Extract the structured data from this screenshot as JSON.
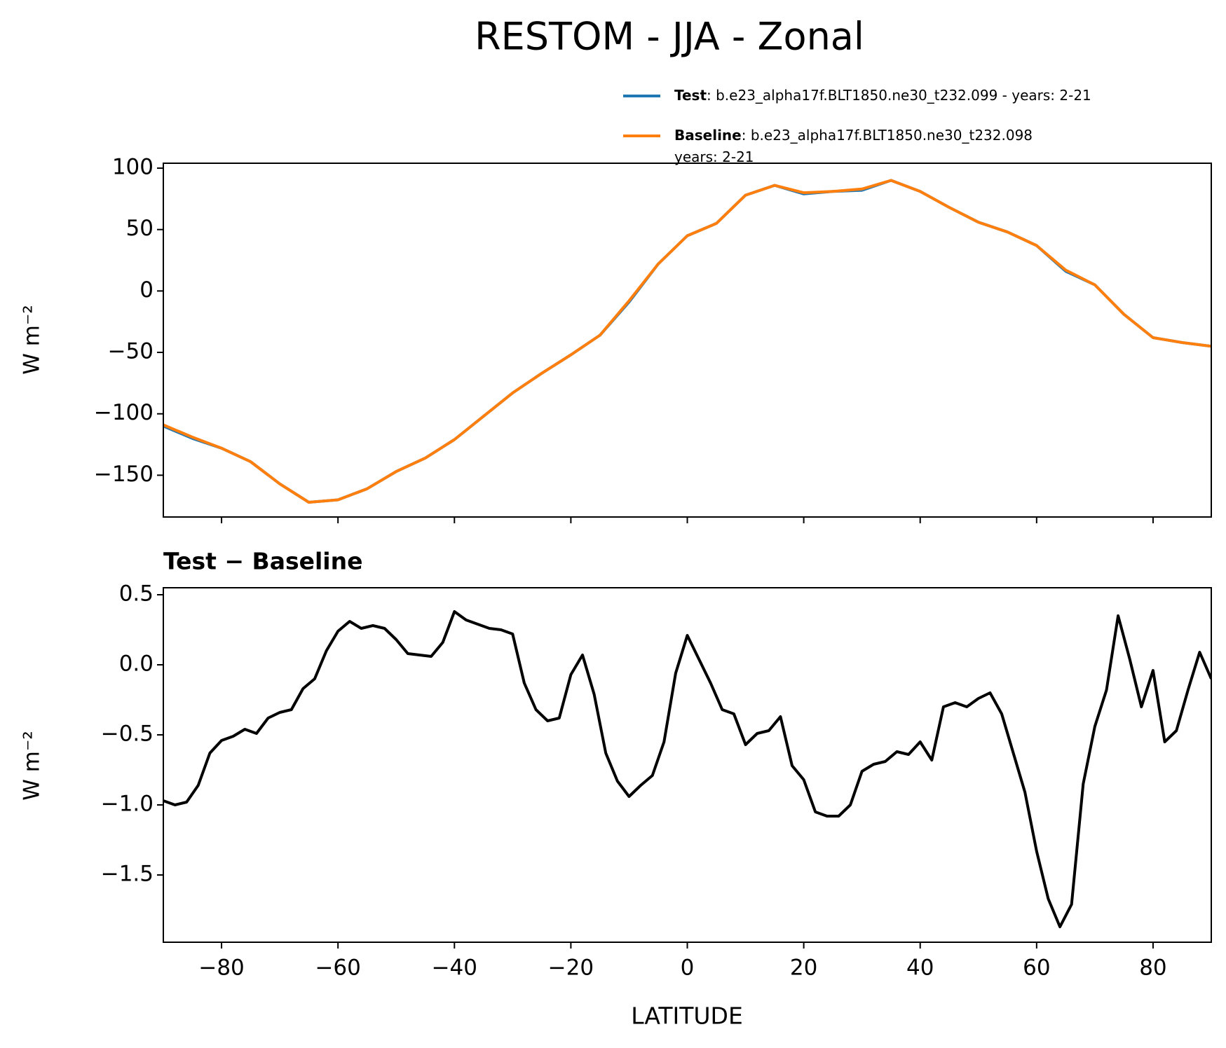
{
  "chart_data": [
    {
      "type": "line",
      "title": "RESTOM - JJA - Zonal",
      "ylabel": "W m⁻²",
      "x": [
        -90,
        -85,
        -80,
        -75,
        -70,
        -65,
        -60,
        -55,
        -50,
        -45,
        -40,
        -35,
        -30,
        -25,
        -20,
        -15,
        -10,
        -5,
        0,
        5,
        10,
        15,
        20,
        25,
        30,
        35,
        40,
        45,
        50,
        55,
        60,
        65,
        70,
        75,
        80,
        85,
        90
      ],
      "series": [
        {
          "name": "Test",
          "description": [
            ": b.e23_alpha17f.BLT1850.ne30_t232.099 - years: 2-21"
          ],
          "color": "#1f77b4",
          "values": [
            -110,
            -120,
            -128,
            -139,
            -157,
            -172,
            -170,
            -161,
            -147,
            -136,
            -121,
            -102,
            -83,
            -67,
            -52,
            -36,
            -9,
            22,
            45,
            55,
            78,
            86,
            79,
            81,
            82,
            90,
            81,
            68,
            56,
            48,
            37,
            16,
            5,
            -19,
            -38,
            -42,
            -45
          ]
        },
        {
          "name": "Baseline",
          "description": [
            ": b.e23_alpha17f.BLT1850.ne30_t232.098",
            "years: 2-21"
          ],
          "color": "#ff7f0e",
          "values": [
            -109,
            -119,
            -128,
            -139,
            -157,
            -172,
            -170,
            -161,
            -147,
            -136,
            -121,
            -102,
            -83,
            -67,
            -52,
            -36,
            -8,
            22,
            45,
            55,
            78,
            86,
            80,
            81,
            83,
            90,
            81,
            68,
            56,
            48,
            37,
            17,
            5,
            -19,
            -38,
            -42,
            -45
          ]
        }
      ],
      "xlim": [
        -90,
        90
      ],
      "xticks": [
        -80,
        -60,
        -40,
        -20,
        0,
        20,
        40,
        60,
        80
      ],
      "ylim": [
        -184,
        104
      ],
      "yticks": [
        {
          "value": 100,
          "label": "100"
        },
        50,
        0,
        {
          "value": -50,
          "label": "−50"
        },
        {
          "value": -100,
          "label": "−100"
        },
        {
          "value": -150,
          "label": "−150"
        }
      ]
    },
    {
      "type": "line",
      "title": "Test − Baseline",
      "ylabel": "W m⁻²",
      "xlabel": "LATITUDE",
      "x": [
        -90,
        -88,
        -86,
        -84,
        -82,
        -80,
        -78,
        -76,
        -74,
        -72,
        -70,
        -68,
        -66,
        -64,
        -62,
        -60,
        -58,
        -56,
        -54,
        -52,
        -50,
        -48,
        -46,
        -44,
        -42,
        -40,
        -38,
        -36,
        -34,
        -32,
        -30,
        -28,
        -26,
        -24,
        -22,
        -20,
        -18,
        -16,
        -14,
        -12,
        -10,
        -8,
        -6,
        -4,
        -2,
        0,
        2,
        4,
        6,
        8,
        10,
        12,
        14,
        16,
        18,
        20,
        22,
        24,
        26,
        28,
        30,
        32,
        34,
        36,
        38,
        40,
        42,
        44,
        46,
        48,
        50,
        52,
        54,
        56,
        58,
        60,
        62,
        64,
        66,
        68,
        70,
        72,
        74,
        76,
        78,
        80,
        82,
        84,
        86,
        88,
        90
      ],
      "series": [
        {
          "color": "#000000",
          "values": [
            -0.97,
            -1.0,
            -0.98,
            -0.86,
            -0.63,
            -0.54,
            -0.51,
            -0.46,
            -0.49,
            -0.38,
            -0.34,
            -0.32,
            -0.17,
            -0.1,
            0.1,
            0.24,
            0.31,
            0.26,
            0.28,
            0.26,
            0.18,
            0.08,
            0.07,
            0.06,
            0.16,
            0.38,
            0.32,
            0.29,
            0.26,
            0.25,
            0.22,
            -0.13,
            -0.32,
            -0.4,
            -0.38,
            -0.07,
            0.07,
            -0.21,
            -0.63,
            -0.83,
            -0.94,
            -0.86,
            -0.79,
            -0.55,
            -0.06,
            0.21,
            0.04,
            -0.13,
            -0.32,
            -0.35,
            -0.57,
            -0.49,
            -0.47,
            -0.37,
            -0.72,
            -0.82,
            -1.05,
            -1.08,
            -1.08,
            -1.0,
            -0.76,
            -0.71,
            -0.69,
            -0.62,
            -0.64,
            -0.55,
            -0.68,
            -0.3,
            -0.27,
            -0.3,
            -0.24,
            -0.2,
            -0.35,
            -0.63,
            -0.91,
            -1.33,
            -1.67,
            -1.87,
            -1.71,
            -0.85,
            -0.44,
            -0.18,
            0.35,
            0.04,
            -0.3,
            -0.04,
            -0.55,
            -0.47,
            -0.18,
            0.09,
            -0.1
          ]
        }
      ],
      "xlim": [
        -90,
        90
      ],
      "xticks": [
        {
          "value": -80,
          "label": "−80"
        },
        {
          "value": -60,
          "label": "−60"
        },
        {
          "value": -40,
          "label": "−40"
        },
        {
          "value": -20,
          "label": "−20"
        },
        0,
        20,
        40,
        60,
        80
      ],
      "ylim": [
        -1.98,
        0.55
      ],
      "yticks": [
        0.5,
        {
          "value": 0,
          "label": "0.0"
        },
        {
          "value": -0.5,
          "label": "−0.5"
        },
        {
          "value": -1,
          "label": "−1.0"
        },
        {
          "value": -1.5,
          "label": "−1.5"
        }
      ]
    }
  ]
}
